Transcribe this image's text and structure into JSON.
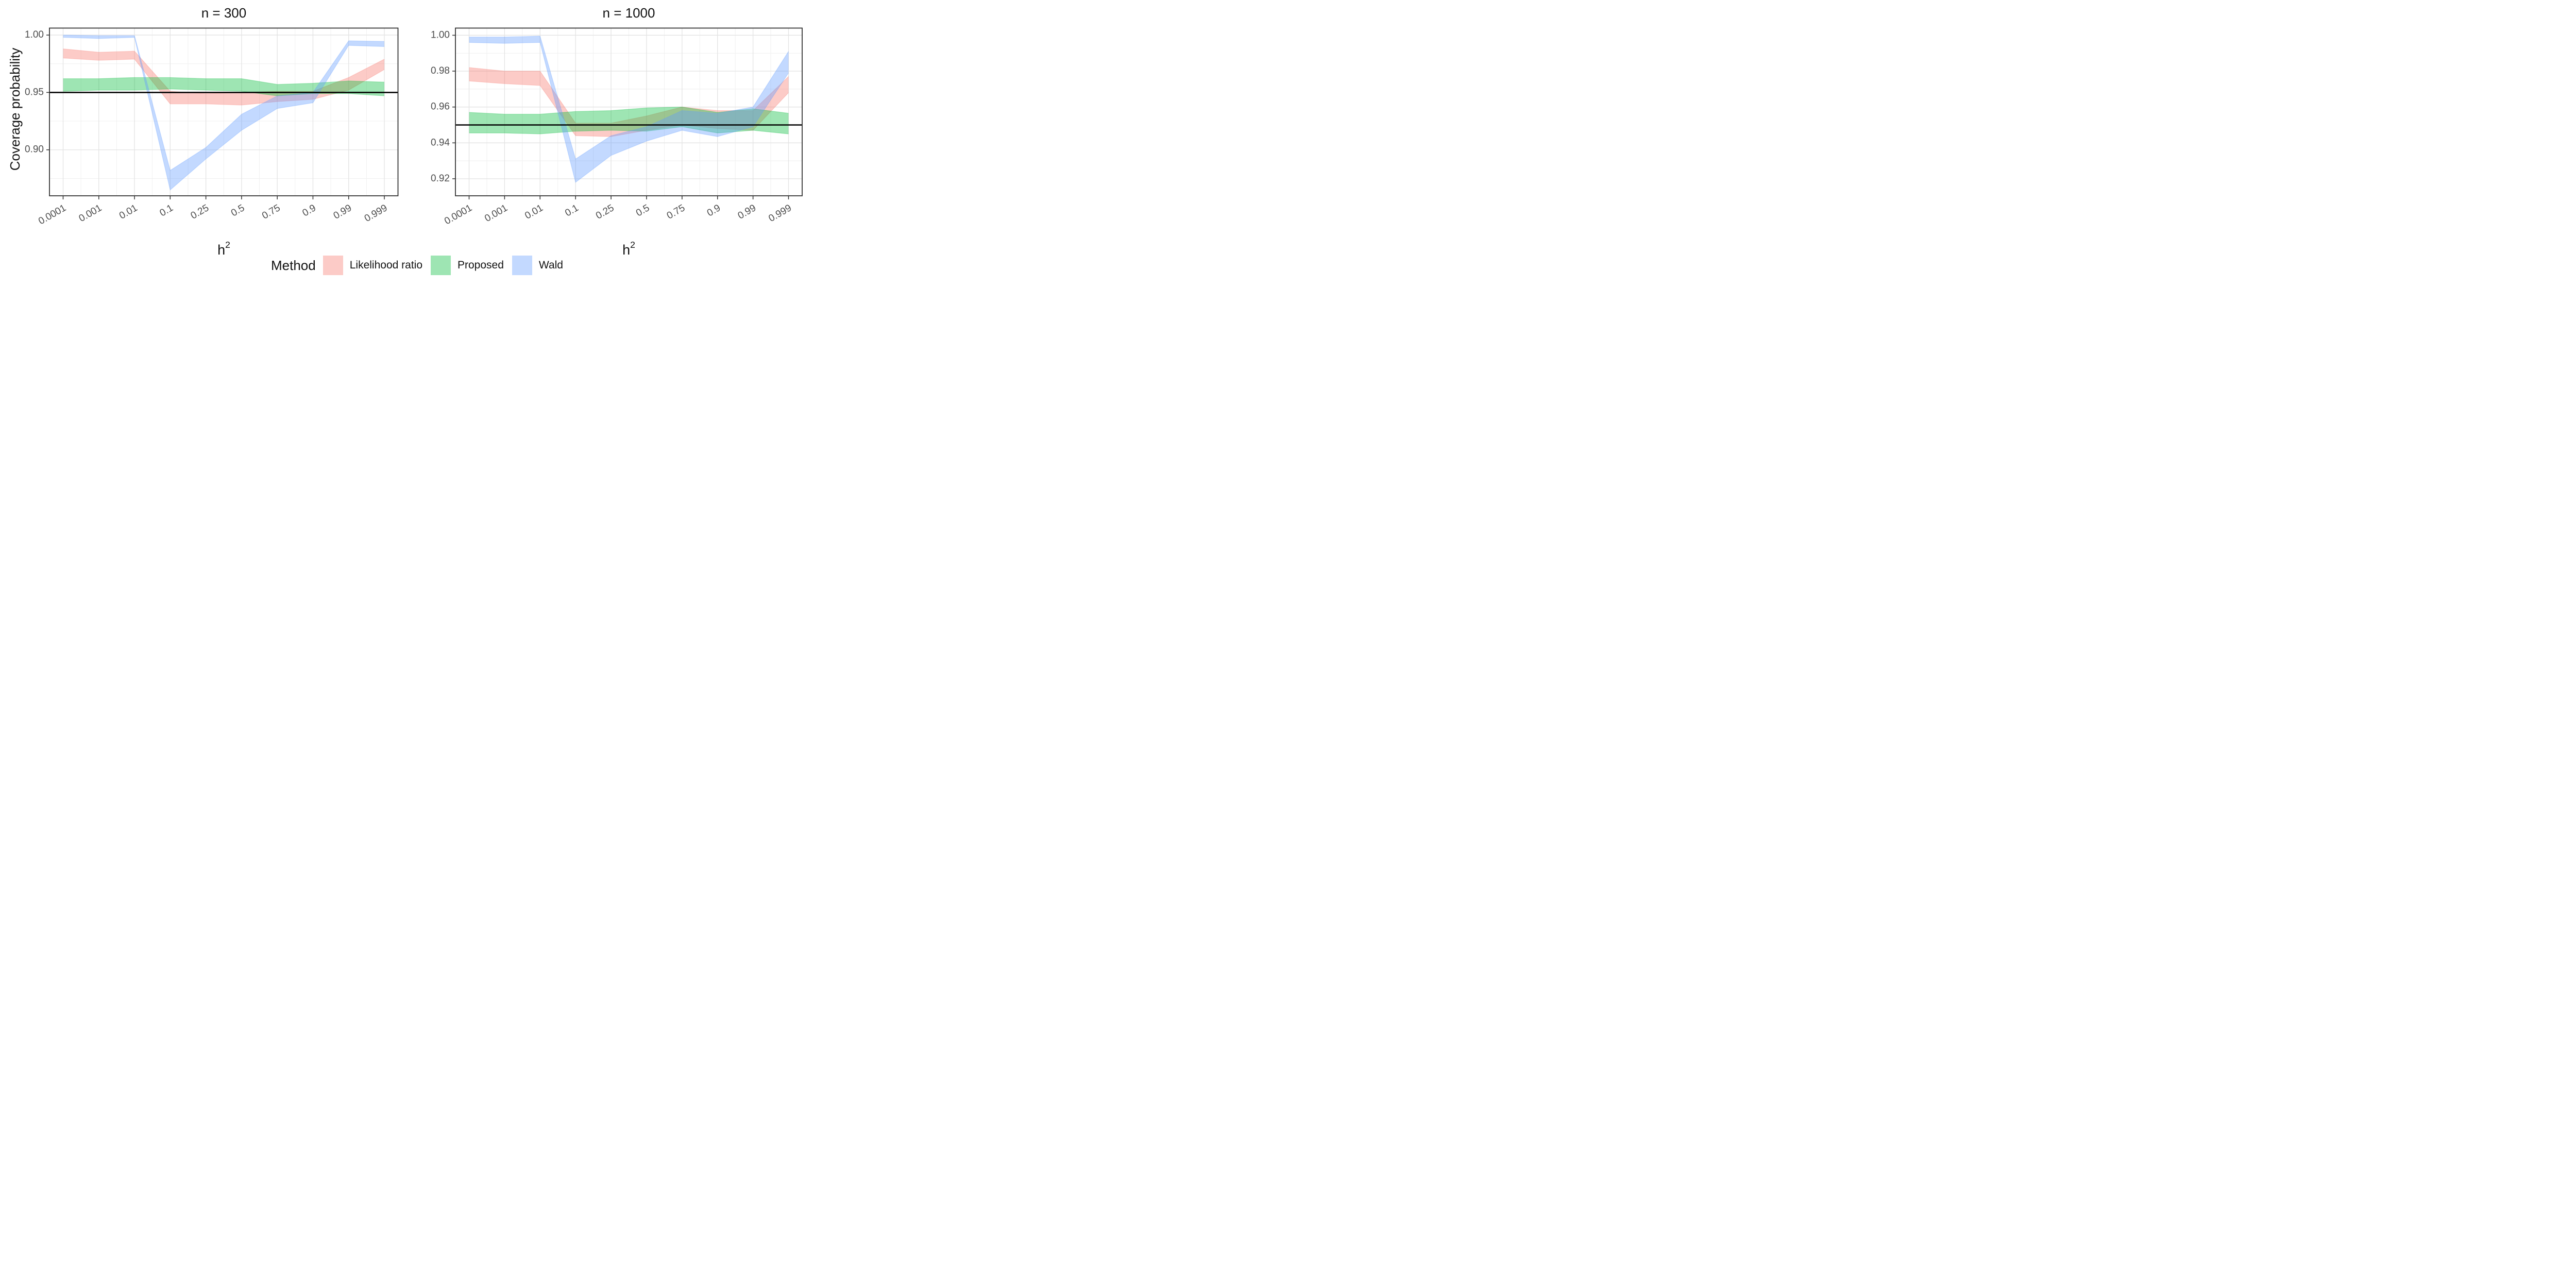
{
  "figure": {
    "y_axis_title": "Coverage probability",
    "x_axis_title_base": "h",
    "x_axis_title_sup": "2",
    "reference_line_y": 0.95,
    "colors": {
      "likelihood_ratio": "#F8766D",
      "proposed": "#00BA38",
      "wald": "#619CFF",
      "reference_line": "#000000",
      "grid_major": "#E3E3E3",
      "grid_minor": "#EFEFEF",
      "panel_border": "#333333",
      "tick_text": "#4D4D4D"
    },
    "legend": {
      "title": "Method",
      "entries": [
        {
          "label": "Likelihood ratio",
          "color": "#F8766D"
        },
        {
          "label": "Proposed",
          "color": "#00BA38"
        },
        {
          "label": "Wald",
          "color": "#619CFF"
        }
      ]
    }
  },
  "chart_data": [
    {
      "type": "area",
      "title": "n = 300",
      "xlabel": "h^2",
      "ylabel": "Coverage probability",
      "x_categories": [
        "0.0001",
        "0.001",
        "0.01",
        "0.1",
        "0.25",
        "0.5",
        "0.75",
        "0.9",
        "0.99",
        "0.999"
      ],
      "ylim": [
        0.8599,
        1.0061
      ],
      "yticks": [
        {
          "v": 1.0,
          "label": "1.00"
        },
        {
          "v": 0.95,
          "label": "0.95"
        },
        {
          "v": 0.9,
          "label": "0.90"
        }
      ],
      "minor_yticks": [
        0.975,
        0.925,
        0.875
      ],
      "reference_line": 0.95,
      "grid": true,
      "legend_position": "bottom",
      "series": [
        {
          "name": "Likelihood ratio",
          "color": "#F8766D",
          "lower": [
            0.98,
            0.978,
            0.979,
            0.94,
            0.94,
            0.939,
            0.942,
            0.944,
            0.952,
            0.97
          ],
          "upper": [
            0.988,
            0.985,
            0.986,
            0.951,
            0.949,
            0.95,
            0.951,
            0.951,
            0.963,
            0.979
          ]
        },
        {
          "name": "Proposed",
          "color": "#00BA38",
          "lower": [
            0.951,
            0.952,
            0.952,
            0.953,
            0.952,
            0.951,
            0.947,
            0.949,
            0.949,
            0.947
          ],
          "upper": [
            0.962,
            0.962,
            0.963,
            0.963,
            0.962,
            0.962,
            0.957,
            0.958,
            0.96,
            0.959
          ]
        },
        {
          "name": "Wald",
          "color": "#619CFF",
          "lower": [
            0.998,
            0.997,
            0.998,
            0.865,
            0.892,
            0.917,
            0.936,
            0.941,
            0.991,
            0.99
          ],
          "upper": [
            1.0,
            0.9995,
            0.9995,
            0.882,
            0.902,
            0.931,
            0.947,
            0.95,
            0.995,
            0.9945
          ]
        }
      ]
    },
    {
      "type": "area",
      "title": "n = 1000",
      "xlabel": "h^2",
      "ylabel": "Coverage probability",
      "x_categories": [
        "0.0001",
        "0.001",
        "0.01",
        "0.1",
        "0.25",
        "0.5",
        "0.75",
        "0.9",
        "0.99",
        "0.999"
      ],
      "ylim": [
        0.9105,
        1.004
      ],
      "yticks": [
        {
          "v": 1.0,
          "label": "1.00"
        },
        {
          "v": 0.98,
          "label": "0.98"
        },
        {
          "v": 0.96,
          "label": "0.96"
        },
        {
          "v": 0.94,
          "label": "0.94"
        },
        {
          "v": 0.92,
          "label": "0.92"
        }
      ],
      "minor_yticks": [
        0.99,
        0.97,
        0.95,
        0.93,
        0.91
      ],
      "reference_line": 0.95,
      "grid": true,
      "legend_position": "bottom",
      "series": [
        {
          "name": "Likelihood ratio",
          "color": "#F8766D",
          "lower": [
            0.9745,
            0.973,
            0.972,
            0.944,
            0.9435,
            0.947,
            0.95,
            0.948,
            0.947,
            0.968
          ],
          "upper": [
            0.982,
            0.98,
            0.98,
            0.951,
            0.951,
            0.955,
            0.96,
            0.958,
            0.958,
            0.977
          ]
        },
        {
          "name": "Proposed",
          "color": "#00BA38",
          "lower": [
            0.9455,
            0.9455,
            0.945,
            0.9465,
            0.947,
            0.9465,
            0.949,
            0.9455,
            0.947,
            0.945
          ],
          "upper": [
            0.957,
            0.956,
            0.956,
            0.9575,
            0.958,
            0.9595,
            0.96,
            0.957,
            0.959,
            0.9565
          ]
        },
        {
          "name": "Wald",
          "color": "#619CFF",
          "lower": [
            0.996,
            0.9955,
            0.996,
            0.918,
            0.933,
            0.941,
            0.947,
            0.9435,
            0.949,
            0.979
          ],
          "upper": [
            0.999,
            0.999,
            0.9995,
            0.931,
            0.944,
            0.949,
            0.958,
            0.9565,
            0.96,
            0.991
          ]
        }
      ]
    }
  ]
}
